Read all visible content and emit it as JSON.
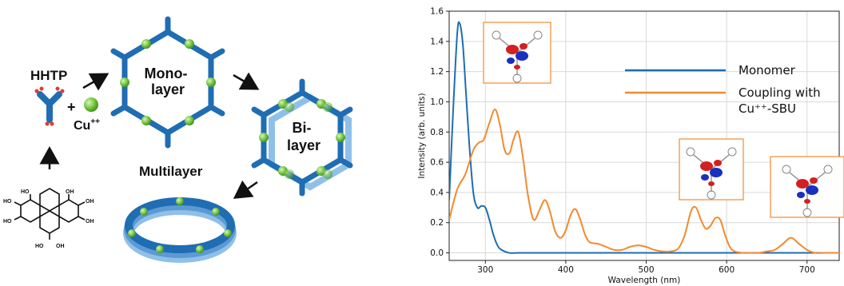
{
  "scheme": {
    "reactant_label": "HHTP",
    "plus": "+",
    "metal_label": "Cu",
    "metal_charge": "++",
    "monolayer_label_line1": "Mono-",
    "monolayer_label_line2": "layer",
    "bilayer_label_line1": "Bi-",
    "bilayer_label_line2": "layer",
    "multilayer_label": "Multilayer",
    "oh_label": "HO",
    "oh_label_right": "OH",
    "colors": {
      "linker": "#1f6db3",
      "copper": "#6fc23a",
      "oxygen": "#e03c31",
      "arrow": "#111111"
    }
  },
  "chart_data": {
    "type": "line",
    "xlabel": "Wavelength (nm)",
    "ylabel": "Intensity (arb. units)",
    "xlim": [
      255,
      740
    ],
    "ylim": [
      -0.05,
      1.6
    ],
    "xticks": [
      300,
      400,
      500,
      600,
      700
    ],
    "yticks": [
      0.0,
      0.2,
      0.4,
      0.6,
      0.8,
      1.0,
      1.2,
      1.4,
      1.6
    ],
    "ytick_labels": [
      "0.0",
      "0.2",
      "0.4",
      "0.6",
      "0.8",
      "1.0",
      "1.2",
      "1.4",
      "1.6"
    ],
    "grid": true,
    "legend_placement": "top-right",
    "series": [
      {
        "name": "Monomer",
        "color": "#1f6db3",
        "x": [
          255,
          260,
          265,
          268,
          272,
          276,
          280,
          285,
          290,
          295,
          300,
          305,
          310,
          315,
          320,
          330,
          340,
          360,
          400,
          500,
          600,
          700,
          740
        ],
        "y": [
          0.35,
          0.95,
          1.45,
          1.52,
          1.38,
          1.05,
          0.72,
          0.4,
          0.3,
          0.31,
          0.3,
          0.22,
          0.12,
          0.05,
          0.02,
          0.0,
          0.0,
          0.0,
          0.0,
          0.0,
          0.0,
          0.0,
          0.0
        ]
      },
      {
        "name": "Coupling with Cu⁺⁺-SBU",
        "color": "#f28a2e",
        "x": [
          255,
          265,
          275,
          285,
          292,
          298,
          305,
          312,
          318,
          324,
          330,
          335,
          341,
          347,
          353,
          360,
          367,
          374,
          380,
          387,
          394,
          400,
          406,
          412,
          418,
          424,
          430,
          440,
          450,
          460,
          470,
          480,
          490,
          500,
          510,
          520,
          530,
          540,
          548,
          556,
          562,
          568,
          574,
          580,
          586,
          592,
          598,
          604,
          610,
          620,
          630,
          640,
          650,
          660,
          670,
          680,
          690,
          700,
          710,
          720,
          740
        ],
        "y": [
          0.22,
          0.42,
          0.52,
          0.68,
          0.73,
          0.75,
          0.86,
          0.95,
          0.85,
          0.68,
          0.66,
          0.75,
          0.8,
          0.62,
          0.38,
          0.22,
          0.28,
          0.35,
          0.28,
          0.14,
          0.1,
          0.15,
          0.25,
          0.29,
          0.22,
          0.12,
          0.07,
          0.06,
          0.04,
          0.02,
          0.02,
          0.04,
          0.05,
          0.04,
          0.02,
          0.01,
          0.01,
          0.03,
          0.12,
          0.28,
          0.3,
          0.22,
          0.16,
          0.18,
          0.23,
          0.22,
          0.12,
          0.04,
          0.01,
          0.0,
          0.0,
          0.0,
          0.01,
          0.02,
          0.06,
          0.1,
          0.06,
          0.02,
          0.0,
          0.0,
          0.0
        ]
      }
    ],
    "legend": {
      "entries": [
        {
          "series": 0,
          "line1": "Monomer",
          "line2": ""
        },
        {
          "series": 1,
          "line1": "Coupling with",
          "line2": "Cu⁺⁺-SBU"
        }
      ]
    },
    "inset_boxes": {
      "color": "#f28a2e",
      "count": 3
    }
  }
}
